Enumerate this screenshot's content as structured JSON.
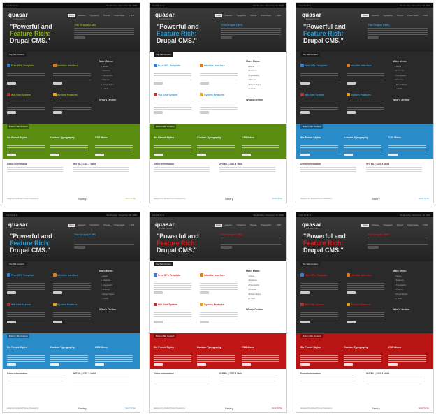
{
  "topbar": {
    "left": "Font Sz ⊕ ⊖",
    "right": "Wednesday, November 19, 2008"
  },
  "logo": {
    "text": "quasar",
    "sub": "joomlarocks.com"
  },
  "nav": [
    "Home",
    "Features",
    "Typography",
    "Themes",
    "Preset Styles",
    "+ Stuff"
  ],
  "hero": {
    "line1": "\"Powerful and",
    "line2_hl": "Feature Rich:",
    "line3": "Drupal CMS.\""
  },
  "hero_side_title": "The Drupal CMS.",
  "top_tab": "Top Tab Content",
  "bottom_tab": "Bottom Tab Content",
  "mid": {
    "c1": "Free GPL Template",
    "c2": "Intuitive Interface",
    "c3": "960 Grid System",
    "c4": "System Features",
    "menu": "Main Menu",
    "menu_items": [
      "Home",
      "Features",
      "Typography",
      "Themes",
      "Preset Styles",
      "+ Stuff"
    ],
    "who": "Who's Online"
  },
  "btm": {
    "c1": "Six Preset Styles",
    "c2": "Custom Typography",
    "c3": "CSS Menu"
  },
  "footer": {
    "demo": "Demo Information",
    "xhtml": "XHTML | CSS 3 Valid",
    "credit": "designed by RocketTheme  Powered by",
    "gantry": "Gantry",
    "top": "Scroll To Top"
  },
  "variants": [
    {
      "style": "dark",
      "accent": "#8cb81a",
      "bottom": "#5b8c12"
    },
    {
      "style": "light",
      "accent": "#2d9fd9",
      "bottom": "#5b8c12"
    },
    {
      "style": "dark",
      "accent": "#2d9fd9",
      "bottom": "#2a8bc9"
    },
    {
      "style": "dark",
      "accent": "#2d9fd9",
      "bottom": "#2a8bc9"
    },
    {
      "style": "light",
      "accent": "#d61e1e",
      "bottom": "#c01616"
    },
    {
      "style": "dark",
      "accent": "#d61e1e",
      "bottom": "#b81414"
    }
  ]
}
